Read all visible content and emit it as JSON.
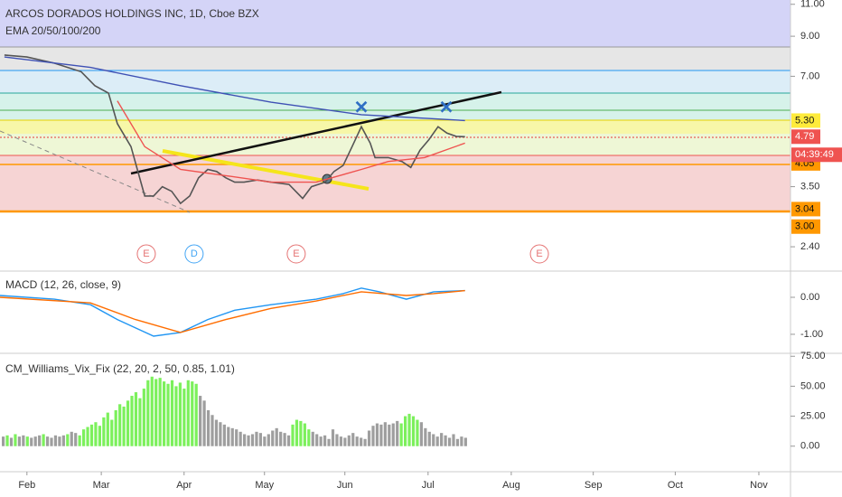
{
  "chart_data": [
    {
      "type": "line",
      "title": "ARCOS DORADOS HOLDINGS INC, 1D, Cboe BZX",
      "subtitle": "EMA 20/50/100/200",
      "log_scale": true,
      "ylim": [
        2.06,
        11.3
      ],
      "yticks": [
        {
          "value": 11,
          "label": "11.00"
        },
        {
          "value": 9,
          "label": "9.00"
        },
        {
          "value": 7,
          "label": "7.00"
        },
        {
          "value": 3.5,
          "label": "3.50"
        },
        {
          "value": 2.4,
          "label": "2.40"
        }
      ],
      "price_labels": [
        {
          "value": 5.3,
          "label": "5.30",
          "color": "#ffeb3b"
        },
        {
          "value": 4.79,
          "label": "4.79",
          "color": "#ef5350"
        },
        {
          "value": 4.05,
          "label": "4.05",
          "color": "#ff9800"
        },
        {
          "value": 3.04,
          "label": "3.04",
          "color": "#ff9800"
        },
        {
          "value": 3,
          "label": "3.00",
          "color": "#ff9800"
        }
      ],
      "countdown": "04:39:49",
      "series": [
        {
          "color": "#555555",
          "x": [
            1.1,
            6.7,
            13.5,
            20.2,
            23.6,
            27,
            29.2,
            32.6,
            36,
            38.2,
            40.4,
            42.7,
            44.9,
            47.2,
            49.4,
            51.7,
            53.9,
            56.2,
            58.4,
            60.7,
            64,
            67.4,
            71.9,
            75.3,
            77.5,
            80.9,
            83.1,
            85.4,
            87.6,
            89.9,
            92.1,
            93.3,
            96.6,
            100,
            102.2,
            104.5,
            106.7,
            109,
            111.2,
            113.5,
            115.7
          ],
          "values": [
            8.0,
            7.9,
            7.6,
            7.2,
            6.6,
            6.3,
            5.2,
            4.5,
            3.3,
            3.3,
            3.5,
            3.4,
            3.15,
            3.3,
            3.7,
            3.9,
            3.85,
            3.7,
            3.6,
            3.6,
            3.65,
            3.6,
            3.55,
            3.25,
            3.5,
            3.6,
            3.85,
            4.0,
            4.5,
            5.1,
            4.6,
            4.2,
            4.2,
            4.1,
            3.95,
            4.4,
            4.7,
            5.1,
            4.9,
            4.8,
            4.79
          ]
        },
        {
          "color": "#3f51b5",
          "x": [
            1.1,
            22.5,
            44.9,
            67.4,
            89.9,
            115.7
          ],
          "values": [
            7.9,
            7.4,
            6.6,
            5.95,
            5.5,
            5.3
          ]
        },
        {
          "color": "#ef5350",
          "x": [
            29.2,
            36,
            44.9,
            56.2,
            67.4,
            78.7,
            89.9,
            96.6,
            105.6,
            115.7
          ],
          "values": [
            6.0,
            4.5,
            3.9,
            3.75,
            3.6,
            3.6,
            3.9,
            4.1,
            4.2,
            4.6
          ]
        }
      ],
      "annotations": [
        {
          "text": "E",
          "x": 36.4,
          "color": "#e57373"
        },
        {
          "text": "D",
          "x": 48.3,
          "color": "#42a5f5"
        },
        {
          "text": "E",
          "x": 73.7,
          "color": "#e57373"
        },
        {
          "text": "E",
          "x": 134.2,
          "color": "#e57373"
        }
      ]
    },
    {
      "type": "line",
      "title": "MACD (12, 26, close, 9)",
      "ylim": [
        -1.49,
        0.66
      ],
      "yticks": [
        {
          "value": 0,
          "label": "0.00"
        },
        {
          "value": -1,
          "label": "-1.00"
        }
      ],
      "series": [
        {
          "color": "#2196f3",
          "x": [
            0,
            13.5,
            22.5,
            29.2,
            38.2,
            44.9,
            51.7,
            58.4,
            67.4,
            78.7,
            85.4,
            89.9,
            94.4,
            101.1,
            107.9,
            115.7
          ],
          "values": [
            0.05,
            -0.05,
            -0.2,
            -0.6,
            -1.05,
            -0.95,
            -0.6,
            -0.35,
            -0.2,
            -0.05,
            0.1,
            0.25,
            0.15,
            -0.05,
            0.15,
            0.18
          ]
        },
        {
          "color": "#ff6d00",
          "x": [
            0,
            22.5,
            33.7,
            44.9,
            56.2,
            67.4,
            78.7,
            89.9,
            101.1,
            107.9,
            115.7
          ],
          "values": [
            0,
            -0.15,
            -0.6,
            -0.95,
            -0.6,
            -0.3,
            -0.1,
            0.15,
            0.05,
            0.1,
            0.18
          ]
        }
      ]
    },
    {
      "type": "bar",
      "title": "CM_Williams_Vix_Fix (22, 20, 2, 50, 0.85, 1.01)",
      "ylim": [
        -19.8,
        76.7
      ],
      "yticks": [
        {
          "value": 75,
          "label": "75.00"
        },
        {
          "value": 50,
          "label": "50.00"
        },
        {
          "value": 25,
          "label": "25.00"
        },
        {
          "value": 0,
          "label": "0.00"
        }
      ],
      "xlim": [
        0,
        196
      ],
      "xticks": [
        {
          "value": 6.7,
          "label": "Feb"
        },
        {
          "value": 25.2,
          "label": "Mar"
        },
        {
          "value": 45.8,
          "label": "Apr"
        },
        {
          "value": 65.8,
          "label": "May"
        },
        {
          "value": 85.8,
          "label": "Jun"
        },
        {
          "value": 106.5,
          "label": "Jul"
        },
        {
          "value": 127.2,
          "label": "Aug"
        },
        {
          "value": 147.6,
          "label": "Sep"
        },
        {
          "value": 168,
          "label": "Oct"
        },
        {
          "value": 188.8,
          "label": "Nov"
        }
      ],
      "values": [
        8,
        9,
        7,
        10,
        8,
        9,
        8,
        7,
        8,
        9,
        10,
        8,
        7,
        9,
        8,
        9,
        10,
        12,
        11,
        9,
        14,
        16,
        18,
        20,
        17,
        24,
        28,
        22,
        30,
        35,
        33,
        38,
        42,
        45,
        40,
        48,
        55,
        58,
        56,
        57,
        54,
        52,
        55,
        50,
        53,
        48,
        55,
        54,
        52,
        42,
        38,
        30,
        26,
        22,
        20,
        18,
        16,
        15,
        14,
        12,
        10,
        9,
        10,
        12,
        11,
        8,
        10,
        13,
        15,
        12,
        11,
        9,
        18,
        22,
        21,
        19,
        14,
        12,
        10,
        8,
        9,
        6,
        14,
        10,
        8,
        7,
        9,
        11,
        8,
        7,
        6,
        13,
        17,
        19,
        18,
        20,
        18,
        19,
        21,
        19,
        25,
        27,
        25,
        22,
        20,
        15,
        12,
        10,
        8,
        11,
        9,
        7,
        10,
        6,
        8,
        7
      ],
      "colors": [
        "#9e9e9e",
        "#7cf05c",
        "#9e9e9e",
        "#7cf05c",
        "#9e9e9e",
        "#9e9e9e",
        "#7cf05c",
        "#9e9e9e",
        "#9e9e9e",
        "#9e9e9e",
        "#7cf05c",
        "#9e9e9e",
        "#9e9e9e",
        "#9e9e9e",
        "#9e9e9e",
        "#9e9e9e",
        "#7cf05c",
        "#9e9e9e",
        "#9e9e9e",
        "#7cf05c",
        "#7cf05c",
        "#7cf05c",
        "#7cf05c",
        "#7cf05c",
        "#7cf05c",
        "#7cf05c",
        "#7cf05c",
        "#7cf05c",
        "#7cf05c",
        "#7cf05c",
        "#7cf05c",
        "#7cf05c",
        "#7cf05c",
        "#7cf05c",
        "#7cf05c",
        "#7cf05c",
        "#7cf05c",
        "#7cf05c",
        "#7cf05c",
        "#7cf05c",
        "#7cf05c",
        "#7cf05c",
        "#7cf05c",
        "#7cf05c",
        "#7cf05c",
        "#7cf05c",
        "#7cf05c",
        "#7cf05c",
        "#7cf05c",
        "#9e9e9e",
        "#9e9e9e",
        "#9e9e9e",
        "#9e9e9e",
        "#9e9e9e",
        "#9e9e9e",
        "#9e9e9e",
        "#9e9e9e",
        "#9e9e9e",
        "#9e9e9e",
        "#9e9e9e",
        "#9e9e9e",
        "#9e9e9e",
        "#9e9e9e",
        "#9e9e9e",
        "#9e9e9e",
        "#9e9e9e",
        "#9e9e9e",
        "#9e9e9e",
        "#9e9e9e",
        "#9e9e9e",
        "#9e9e9e",
        "#9e9e9e",
        "#7cf05c",
        "#7cf05c",
        "#7cf05c",
        "#7cf05c",
        "#7cf05c",
        "#9e9e9e",
        "#9e9e9e",
        "#9e9e9e",
        "#9e9e9e",
        "#9e9e9e",
        "#9e9e9e",
        "#9e9e9e",
        "#9e9e9e",
        "#9e9e9e",
        "#9e9e9e",
        "#9e9e9e",
        "#9e9e9e",
        "#9e9e9e",
        "#9e9e9e",
        "#9e9e9e",
        "#9e9e9e",
        "#9e9e9e",
        "#9e9e9e",
        "#9e9e9e",
        "#9e9e9e",
        "#9e9e9e",
        "#9e9e9e",
        "#7cf05c",
        "#7cf05c",
        "#7cf05c",
        "#7cf05c",
        "#7cf05c",
        "#9e9e9e",
        "#9e9e9e",
        "#9e9e9e",
        "#9e9e9e",
        "#9e9e9e",
        "#9e9e9e",
        "#9e9e9e",
        "#9e9e9e",
        "#9e9e9e",
        "#9e9e9e",
        "#9e9e9e",
        "#9e9e9e"
      ]
    }
  ]
}
